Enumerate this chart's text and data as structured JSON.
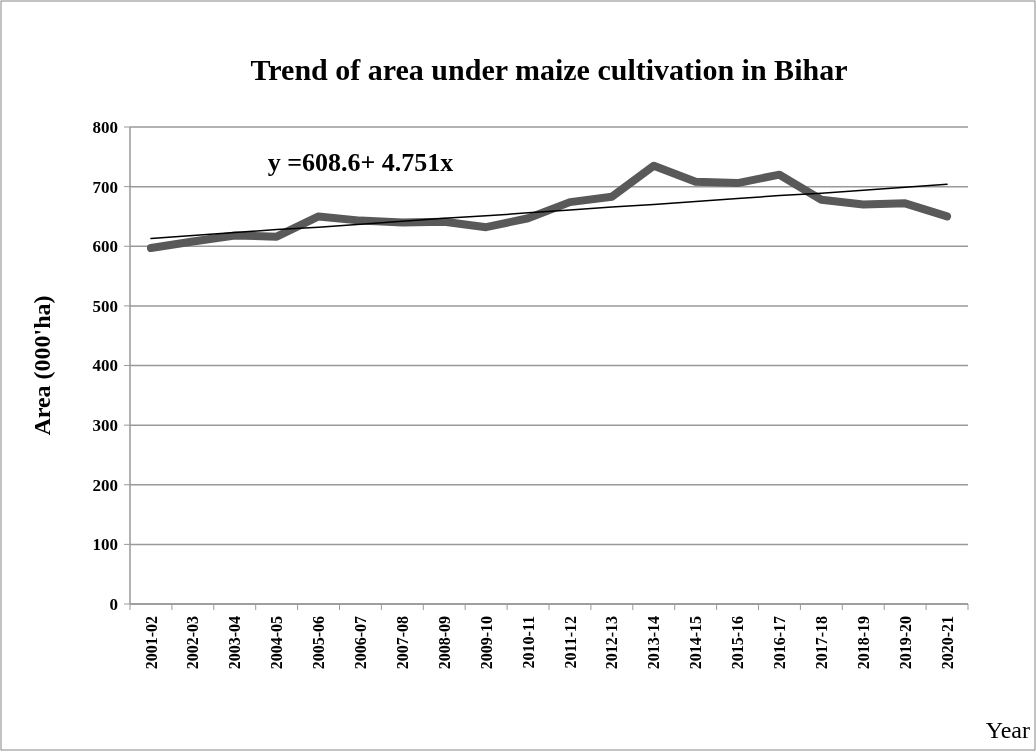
{
  "chart_data": {
    "type": "line",
    "title": "Trend of area under maize cultivation in Bihar",
    "xlabel": "Year",
    "ylabel": "Area (000'ha)",
    "categories": [
      "2001-02",
      "2002-03",
      "2003-04",
      "2004-05",
      "2005-06",
      "2006-07",
      "2007-08",
      "2008-09",
      "2009-10",
      "2010-11",
      "2011-12",
      "2012-13",
      "2013-14",
      "2014-15",
      "2015-16",
      "2016-17",
      "2017-18",
      "2018-19",
      "2019-20",
      "2020-21"
    ],
    "series": [
      {
        "color": "#595959",
        "values": [
          597,
          608,
          618,
          616,
          650,
          643,
          640,
          641,
          632,
          647,
          674,
          683,
          735,
          708,
          706,
          720,
          678,
          670,
          672,
          650
        ]
      },
      {
        "type": "line",
        "color": "#000000",
        "values": [
          613,
          618,
          623,
          628,
          632,
          637,
          642,
          647,
          651,
          656,
          661,
          666,
          670,
          675,
          680,
          685,
          689,
          694,
          699,
          704
        ]
      }
    ],
    "annotations": [
      "y =608.6+ 4.751x"
    ],
    "ylim": [
      0,
      800
    ],
    "yticks": [
      0,
      100,
      200,
      300,
      400,
      500,
      600,
      700,
      800
    ],
    "grid": "y",
    "line_style": "solid"
  }
}
